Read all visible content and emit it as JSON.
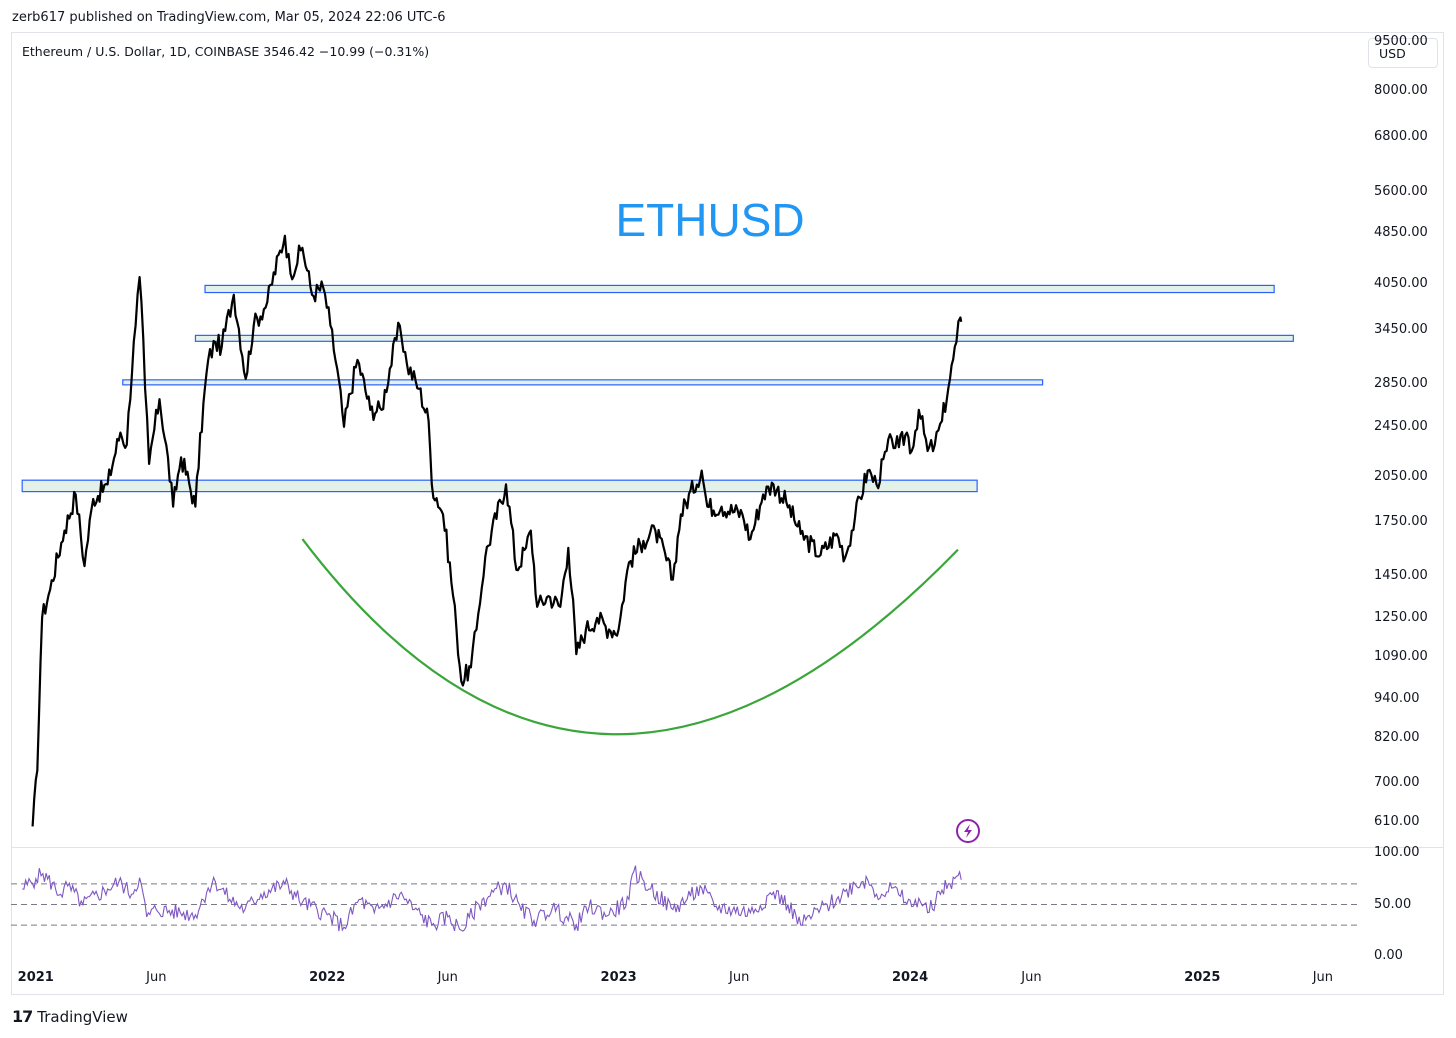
{
  "header": {
    "publisher_text": "zerb617 published on TradingView.com, Mar 05, 2024 22:06 UTC-6",
    "symbol_line": "Ethereum / U.S. Dollar, 1D, COINBASE  3546.42  −10.99 (−0.31%)",
    "currency_button": "USD"
  },
  "footer": {
    "logo_mark": "17",
    "brand": "TradingView"
  },
  "colors": {
    "price": "#000000",
    "zone_border": "#2962ff",
    "zone_fill": "#e3f1e8",
    "arc": "#3aa63a",
    "rsi": "#7e57c2",
    "title": "#2196f3",
    "lightning": "#8e24aa"
  },
  "icons": {
    "lightning": "lightning-icon"
  },
  "chart_data": [
    {
      "type": "line",
      "title": "ETHUSD",
      "scale": "log",
      "ylim": [
        560,
        9800
      ],
      "y_ticks": [
        "9500.00",
        "8000.00",
        "6800.00",
        "5600.00",
        "4850.00",
        "4050.00",
        "3450.00",
        "2850.00",
        "2450.00",
        "2050.00",
        "1750.00",
        "1450.00",
        "1250.00",
        "1090.00",
        "940.00",
        "820.00",
        "700.00",
        "610.00"
      ],
      "x_ticks": [
        {
          "label": "2021",
          "bold": true
        },
        {
          "label": "Jun",
          "bold": false
        },
        {
          "label": "2022",
          "bold": true
        },
        {
          "label": "Jun",
          "bold": false
        },
        {
          "label": "2023",
          "bold": true
        },
        {
          "label": "Jun",
          "bold": false
        },
        {
          "label": "2024",
          "bold": true
        },
        {
          "label": "Jun",
          "bold": false
        },
        {
          "label": "2025",
          "bold": true
        },
        {
          "label": "Jun",
          "bold": false
        }
      ],
      "series": [
        {
          "x": [
            "2020-12-28",
            "2021-01-03",
            "2021-01-09",
            "2021-01-19",
            "2021-02-06",
            "2021-02-20",
            "2021-03-03",
            "2021-03-14",
            "2021-04-01",
            "2021-04-17",
            "2021-04-25",
            "2021-05-06",
            "2021-05-11",
            "2021-05-18",
            "2021-05-23",
            "2021-06-05",
            "2021-06-22",
            "2021-07-02",
            "2021-07-20",
            "2021-08-05",
            "2021-08-14",
            "2021-08-22",
            "2021-09-06",
            "2021-09-21",
            "2021-10-01",
            "2021-10-18",
            "2021-11-09",
            "2021-11-16",
            "2021-12-01",
            "2021-12-13",
            "2021-12-27",
            "2022-01-05",
            "2022-01-22",
            "2022-02-08",
            "2022-02-24",
            "2022-03-10",
            "2022-04-02",
            "2022-04-11",
            "2022-04-26",
            "2022-05-08",
            "2022-05-12",
            "2022-05-26",
            "2022-06-12",
            "2022-06-18",
            "2022-06-30",
            "2022-07-07",
            "2022-07-18",
            "2022-08-13",
            "2022-08-26",
            "2022-09-07",
            "2022-09-13",
            "2022-09-21",
            "2022-10-05",
            "2022-10-20",
            "2022-10-30",
            "2022-11-09",
            "2022-11-21",
            "2022-12-05",
            "2022-12-20",
            "2023-01-01",
            "2023-01-14",
            "2023-02-01",
            "2023-02-16",
            "2023-03-10",
            "2023-03-20",
            "2023-04-15",
            "2023-04-22",
            "2023-05-10",
            "2023-06-05",
            "2023-06-15",
            "2023-07-01",
            "2023-07-14",
            "2023-07-30",
            "2023-08-17",
            "2023-09-11",
            "2023-10-01",
            "2023-10-12",
            "2023-10-24",
            "2023-11-09",
            "2023-11-20",
            "2023-12-09",
            "2023-12-18",
            "2023-12-28",
            "2024-01-03",
            "2024-01-12",
            "2024-01-23",
            "2024-02-01",
            "2024-02-10",
            "2024-02-20",
            "2024-02-28",
            "2024-03-04",
            "2024-03-05"
          ],
          "values": [
            600,
            730,
            1250,
            1380,
            1700,
            1930,
            1500,
            1900,
            2000,
            2400,
            2300,
            3500,
            4150,
            2800,
            2150,
            2700,
            1850,
            2200,
            1850,
            3100,
            3300,
            3250,
            3900,
            2900,
            3500,
            3800,
            4800,
            4200,
            4600,
            3900,
            4000,
            3500,
            2450,
            3100,
            2600,
            2600,
            3500,
            3050,
            2800,
            2500,
            2000,
            1800,
            1200,
            1000,
            1050,
            1200,
            1550,
            2000,
            1480,
            1600,
            1700,
            1300,
            1350,
            1300,
            1600,
            1100,
            1200,
            1250,
            1200,
            1200,
            1520,
            1640,
            1700,
            1430,
            1800,
            2100,
            1850,
            1850,
            1800,
            1650,
            1930,
            2000,
            1880,
            1680,
            1560,
            1680,
            1550,
            1780,
            2100,
            2000,
            2350,
            2280,
            2400,
            2250,
            2600,
            2250,
            2300,
            2500,
            2900,
            3300,
            3600,
            3546
          ]
        }
      ],
      "zones": [
        {
          "from": "2021-08-01",
          "to": "2025-04-01",
          "low": 3930,
          "high": 4030
        },
        {
          "from": "2021-07-20",
          "to": "2025-04-25",
          "low": 3310,
          "high": 3380
        },
        {
          "from": "2021-04-20",
          "to": "2024-06-15",
          "low": 2840,
          "high": 2890
        },
        {
          "from": "2020-12-15",
          "to": "2024-03-25",
          "low": 1950,
          "high": 2030
        }
      ],
      "arc": {
        "start": "2021-12-01",
        "end": "2024-03-01",
        "start_value": 1650,
        "end_value": 1590,
        "bottom_date": "2022-12-24",
        "bottom_value": 830
      }
    },
    {
      "type": "line",
      "title": "RSI",
      "ylim": [
        0,
        100
      ],
      "y_ticks": [
        "100.00",
        "50.00",
        "0.00"
      ],
      "levels": [
        70,
        50,
        30
      ],
      "series": [
        {
          "x": [
            "2020-12-15",
            "2021-01-01",
            "2021-01-10",
            "2021-02-01",
            "2021-02-10",
            "2021-03-01",
            "2021-04-01",
            "2021-04-15",
            "2021-05-01",
            "2021-05-11",
            "2021-05-20",
            "2021-06-01",
            "2021-07-01",
            "2021-07-20",
            "2021-08-05",
            "2021-08-14",
            "2021-09-01",
            "2021-09-20",
            "2021-10-10",
            "2021-11-09",
            "2021-12-01",
            "2022-01-01",
            "2022-01-22",
            "2022-02-10",
            "2022-03-01",
            "2022-04-02",
            "2022-04-20",
            "2022-05-12",
            "2022-06-01",
            "2022-06-18",
            "2022-07-10",
            "2022-07-28",
            "2022-08-13",
            "2022-09-01",
            "2022-09-21",
            "2022-10-10",
            "2022-11-09",
            "2022-11-25",
            "2022-12-20",
            "2023-01-14",
            "2023-01-20",
            "2023-02-10",
            "2023-03-10",
            "2023-04-01",
            "2023-04-15",
            "2023-05-01",
            "2023-06-15",
            "2023-07-14",
            "2023-08-01",
            "2023-08-17",
            "2023-09-01",
            "2023-10-01",
            "2023-10-24",
            "2023-11-09",
            "2023-11-20",
            "2023-12-09",
            "2023-12-20",
            "2024-01-03",
            "2024-01-12",
            "2024-01-23",
            "2024-02-10",
            "2024-02-20",
            "2024-03-01",
            "2024-03-05"
          ],
          "values": [
            65,
            75,
            80,
            60,
            68,
            50,
            65,
            72,
            60,
            76,
            38,
            45,
            42,
            40,
            66,
            72,
            55,
            45,
            60,
            70,
            52,
            40,
            28,
            55,
            42,
            60,
            45,
            30,
            38,
            25,
            50,
            62,
            70,
            44,
            35,
            47,
            30,
            48,
            40,
            55,
            82,
            65,
            45,
            58,
            66,
            48,
            42,
            62,
            50,
            30,
            40,
            55,
            70,
            74,
            60,
            66,
            58,
            48,
            56,
            42,
            64,
            70,
            78,
            74
          ]
        }
      ]
    }
  ]
}
